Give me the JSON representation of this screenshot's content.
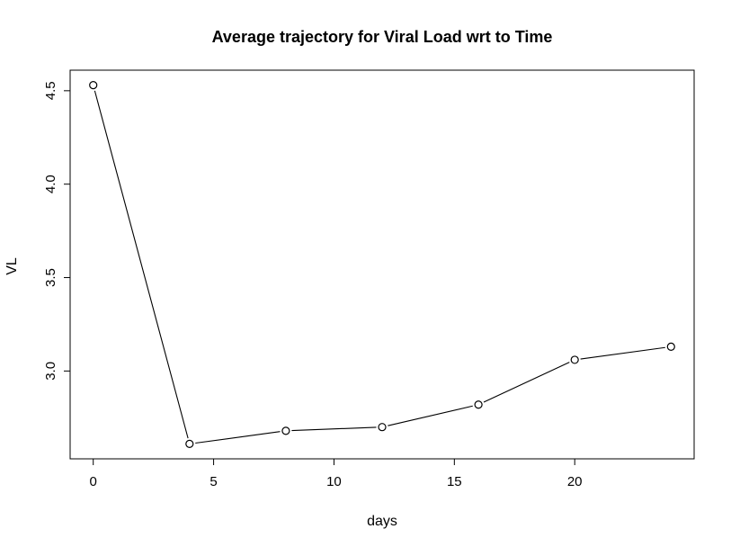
{
  "chart_data": {
    "type": "line",
    "title": "Average trajectory for Viral Load wrt to Time",
    "xlabel": "days",
    "ylabel": "VL",
    "x": [
      0,
      4,
      8,
      12,
      16,
      20,
      24
    ],
    "series": [
      {
        "values": [
          4.53,
          2.61,
          2.68,
          2.7,
          2.82,
          3.06,
          3.13
        ]
      }
    ],
    "xlim": [
      -0.96,
      24.96
    ],
    "ylim": [
      2.53,
      4.61
    ],
    "xticks": [
      0,
      5,
      10,
      15,
      20
    ],
    "yticks": [
      3.0,
      3.5,
      4.0,
      4.5
    ],
    "xtick_labels": [
      "0",
      "5",
      "10",
      "15",
      "20"
    ],
    "ytick_labels": [
      "3.0",
      "3.5",
      "4.0",
      "4.5"
    ],
    "markers": "open-circle",
    "grid": false,
    "legend": "none"
  }
}
